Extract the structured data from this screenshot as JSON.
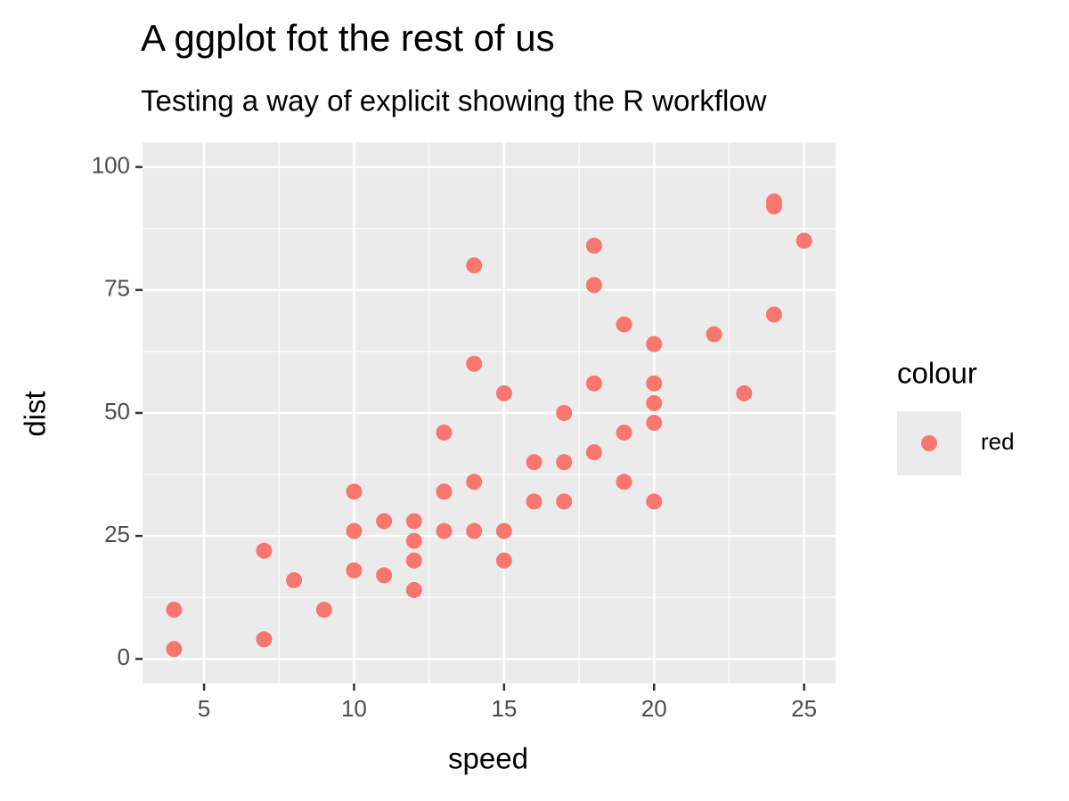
{
  "chart_data": {
    "type": "scatter",
    "title": "A ggplot fot the rest of us",
    "subtitle": "Testing a way of explicit showing the R workflow",
    "x_label": "speed",
    "y_label": "dist",
    "legend_title": "colour",
    "xlim": [
      2.95,
      26.05
    ],
    "ylim": [
      -5,
      105
    ],
    "xticks": [
      5,
      10,
      15,
      20,
      25
    ],
    "yticks": [
      0,
      25,
      50,
      75,
      100
    ],
    "x_minor_grid": [
      7.5,
      12.5,
      17.5,
      22.5
    ],
    "y_minor_grid": [
      12.5,
      37.5,
      62.5,
      87.5
    ],
    "grid": true,
    "series": [
      {
        "name": "red",
        "color": "#F8766D",
        "x": [
          4,
          4,
          7,
          7,
          8,
          9,
          10,
          10,
          10,
          11,
          11,
          12,
          12,
          12,
          12,
          13,
          13,
          13,
          13,
          14,
          14,
          14,
          14,
          15,
          15,
          15,
          16,
          16,
          17,
          17,
          17,
          18,
          18,
          18,
          18,
          19,
          19,
          19,
          20,
          20,
          20,
          20,
          20,
          22,
          23,
          24,
          24,
          24,
          25
        ],
        "values": [
          2,
          10,
          4,
          22,
          16,
          10,
          18,
          26,
          34,
          17,
          28,
          14,
          20,
          24,
          28,
          26,
          34,
          34,
          46,
          26,
          36,
          60,
          80,
          20,
          26,
          54,
          32,
          40,
          32,
          40,
          50,
          42,
          56,
          76,
          84,
          36,
          46,
          68,
          32,
          48,
          52,
          56,
          64,
          66,
          54,
          70,
          92,
          93,
          85
        ]
      }
    ]
  }
}
